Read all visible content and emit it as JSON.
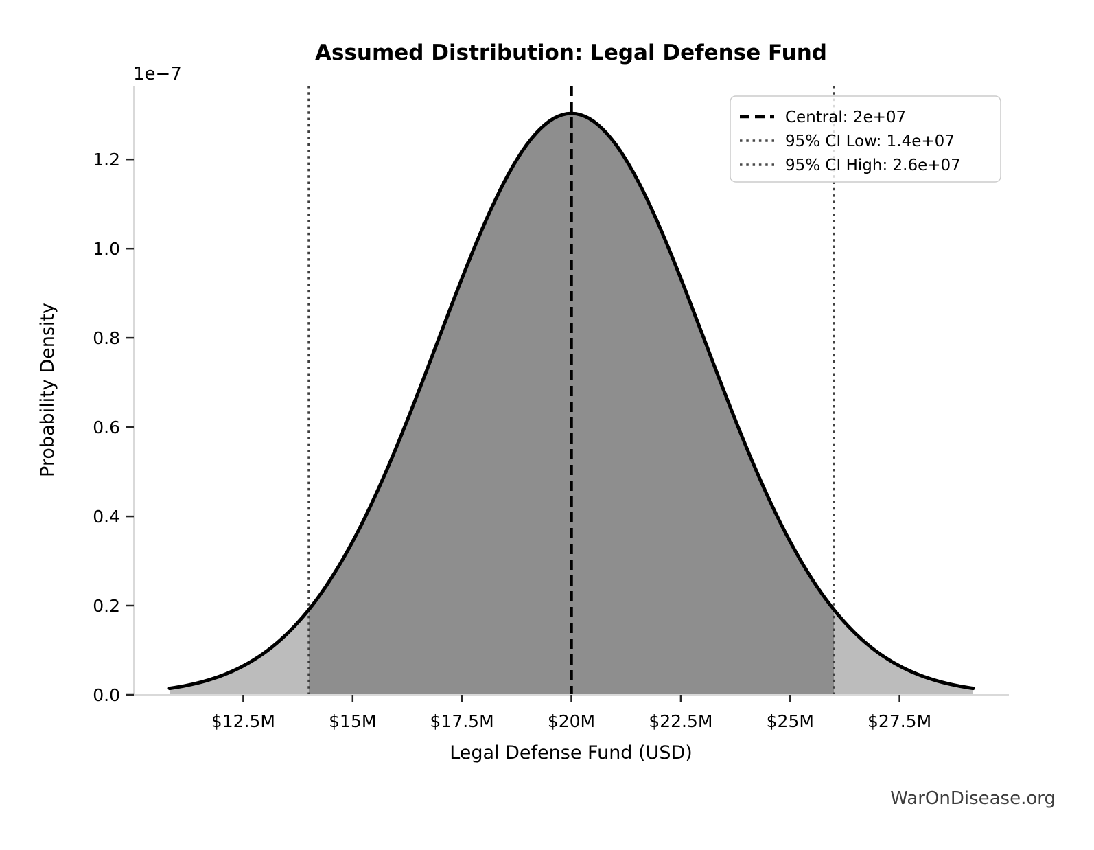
{
  "chart_data": {
    "type": "area",
    "distribution": "normal",
    "title": "Assumed Distribution: Legal Defense Fund",
    "xlabel": "Legal Defense Fund (USD)",
    "ylabel": "Probability Density",
    "y_offset_text": "1e−7",
    "central": 20000000,
    "ci_low": 14000000,
    "ci_high": 26000000,
    "sigma": 3061224.49,
    "curve_span_sigmas": 3,
    "peak_density": 1.303e-07,
    "xlim": [
      10000000,
      30000000
    ],
    "ylim": [
      0,
      1.365e-07
    ],
    "x_ticks": [
      {
        "value": 12500000,
        "label": "$12.5M"
      },
      {
        "value": 15000000,
        "label": "$15M"
      },
      {
        "value": 17500000,
        "label": "$17.5M"
      },
      {
        "value": 20000000,
        "label": "$20M"
      },
      {
        "value": 22500000,
        "label": "$22.5M"
      },
      {
        "value": 25000000,
        "label": "$25M"
      },
      {
        "value": 27500000,
        "label": "$27.5M"
      }
    ],
    "y_ticks": [
      {
        "value": 0,
        "label": "0.0"
      },
      {
        "value": 2e-08,
        "label": "0.2"
      },
      {
        "value": 4e-08,
        "label": "0.4"
      },
      {
        "value": 6e-08,
        "label": "0.6"
      },
      {
        "value": 8e-08,
        "label": "0.8"
      },
      {
        "value": 1e-07,
        "label": "1.0"
      },
      {
        "value": 1.2e-07,
        "label": "1.2"
      }
    ],
    "legend": {
      "position": "upper right",
      "entries": [
        {
          "style": "dashed",
          "color": "#000000",
          "label": "Central: 2e+07"
        },
        {
          "style": "dotted",
          "color": "#4a4a4a",
          "label": "95% CI Low: 1.4e+07"
        },
        {
          "style": "dotted",
          "color": "#4a4a4a",
          "label": "95% CI High: 2.6e+07"
        }
      ]
    },
    "colors": {
      "curve": "#000000",
      "fill_outer": "#bcbcbc",
      "fill_inner": "#8e8e8e",
      "central_line": "#000000",
      "ci_line": "#404040",
      "spine": "#d9d9d9",
      "tick_mark": "#262626"
    },
    "grid": false
  },
  "watermark": "WarOnDisease.org"
}
